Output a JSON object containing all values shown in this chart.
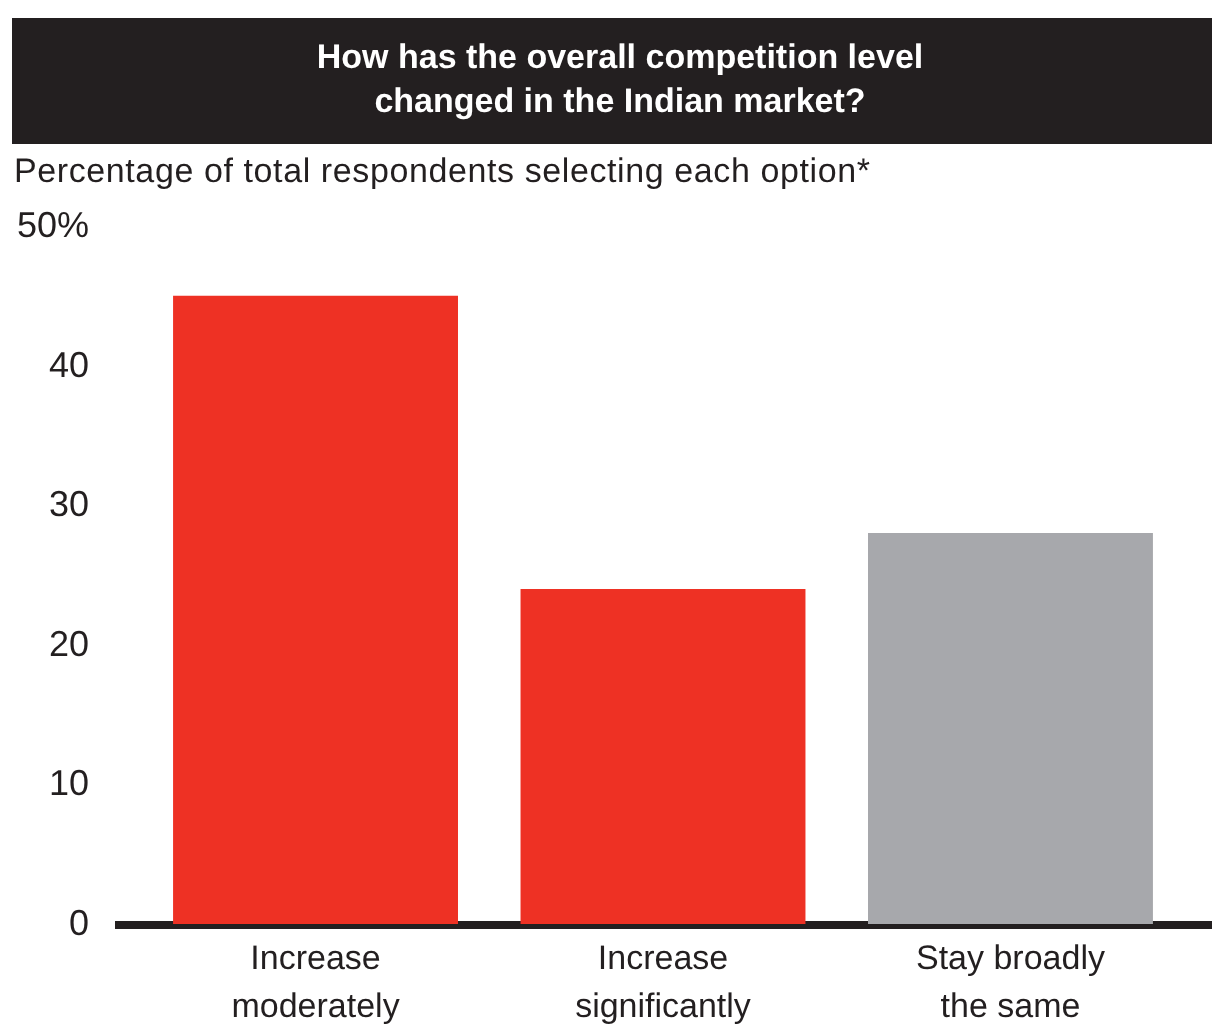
{
  "chart_data": {
    "type": "bar",
    "title": "How has the overall competition level changed in the Indian market?",
    "subtitle": "Percentage of total respondents selecting each option*",
    "categories": [
      "Increase moderately",
      "Increase significantly",
      "Stay broadly the same"
    ],
    "values": [
      45,
      24,
      28
    ],
    "colors": [
      "#ee3124",
      "#ee3124",
      "#a7a8ac"
    ],
    "ylim": [
      0,
      50
    ],
    "yticks": [
      0,
      10,
      20,
      30,
      40,
      {
        "value": 50,
        "label": "50%"
      }
    ],
    "grid": false
  }
}
